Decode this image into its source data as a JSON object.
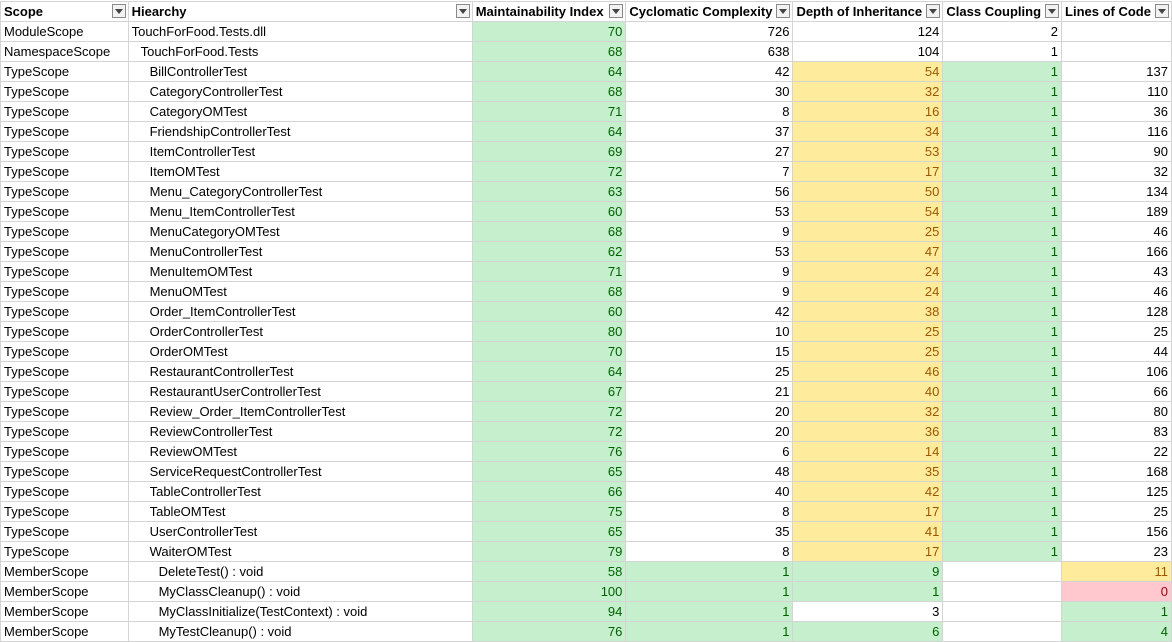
{
  "colors": {
    "good": "#c6efce",
    "good_text": "#006100",
    "warn": "#ffeb9c",
    "warn_text": "#9c5700",
    "bad": "#ffc7ce",
    "bad_text": "#9c0006"
  },
  "columns": [
    "Scope",
    "Hiearchy",
    "Maintainability Index",
    "Cyclomatic Complexity",
    "Depth of Inheritance",
    "Class Coupling",
    "Lines of Code"
  ],
  "rows": [
    {
      "scope": "ModuleScope",
      "name": "TouchForFood.Tests.dll",
      "indent": 0,
      "mi": "70",
      "cc": "726",
      "di": "124",
      "coupling": "2",
      "loc": "",
      "c": [
        "green",
        "plain",
        "plain",
        "plain",
        "plain"
      ]
    },
    {
      "scope": "NamespaceScope",
      "name": "TouchForFood.Tests",
      "indent": 1,
      "mi": "68",
      "cc": "638",
      "di": "104",
      "coupling": "1",
      "loc": "",
      "c": [
        "green",
        "plain",
        "plain",
        "plain",
        "plain"
      ]
    },
    {
      "scope": "TypeScope",
      "name": "BillControllerTest",
      "indent": 2,
      "mi": "64",
      "cc": "42",
      "di": "54",
      "coupling": "1",
      "loc": "137",
      "c": [
        "green",
        "plain",
        "yellow",
        "green",
        "plain"
      ]
    },
    {
      "scope": "TypeScope",
      "name": "CategoryControllerTest",
      "indent": 2,
      "mi": "68",
      "cc": "30",
      "di": "32",
      "coupling": "1",
      "loc": "110",
      "c": [
        "green",
        "plain",
        "yellow",
        "green",
        "plain"
      ]
    },
    {
      "scope": "TypeScope",
      "name": "CategoryOMTest",
      "indent": 2,
      "mi": "71",
      "cc": "8",
      "di": "16",
      "coupling": "1",
      "loc": "36",
      "c": [
        "green",
        "plain",
        "yellow",
        "green",
        "plain"
      ]
    },
    {
      "scope": "TypeScope",
      "name": "FriendshipControllerTest",
      "indent": 2,
      "mi": "64",
      "cc": "37",
      "di": "34",
      "coupling": "1",
      "loc": "116",
      "c": [
        "green",
        "plain",
        "yellow",
        "green",
        "plain"
      ]
    },
    {
      "scope": "TypeScope",
      "name": "ItemControllerTest",
      "indent": 2,
      "mi": "69",
      "cc": "27",
      "di": "53",
      "coupling": "1",
      "loc": "90",
      "c": [
        "green",
        "plain",
        "yellow",
        "green",
        "plain"
      ]
    },
    {
      "scope": "TypeScope",
      "name": "ItemOMTest",
      "indent": 2,
      "mi": "72",
      "cc": "7",
      "di": "17",
      "coupling": "1",
      "loc": "32",
      "c": [
        "green",
        "plain",
        "yellow",
        "green",
        "plain"
      ]
    },
    {
      "scope": "TypeScope",
      "name": "Menu_CategoryControllerTest",
      "indent": 2,
      "mi": "63",
      "cc": "56",
      "di": "50",
      "coupling": "1",
      "loc": "134",
      "c": [
        "green",
        "plain",
        "yellow",
        "green",
        "plain"
      ]
    },
    {
      "scope": "TypeScope",
      "name": "Menu_ItemControllerTest",
      "indent": 2,
      "mi": "60",
      "cc": "53",
      "di": "54",
      "coupling": "1",
      "loc": "189",
      "c": [
        "green",
        "plain",
        "yellow",
        "green",
        "plain"
      ]
    },
    {
      "scope": "TypeScope",
      "name": "MenuCategoryOMTest",
      "indent": 2,
      "mi": "68",
      "cc": "9",
      "di": "25",
      "coupling": "1",
      "loc": "46",
      "c": [
        "green",
        "plain",
        "yellow",
        "green",
        "plain"
      ]
    },
    {
      "scope": "TypeScope",
      "name": "MenuControllerTest",
      "indent": 2,
      "mi": "62",
      "cc": "53",
      "di": "47",
      "coupling": "1",
      "loc": "166",
      "c": [
        "green",
        "plain",
        "yellow",
        "green",
        "plain"
      ]
    },
    {
      "scope": "TypeScope",
      "name": "MenuItemOMTest",
      "indent": 2,
      "mi": "71",
      "cc": "9",
      "di": "24",
      "coupling": "1",
      "loc": "43",
      "c": [
        "green",
        "plain",
        "yellow",
        "green",
        "plain"
      ]
    },
    {
      "scope": "TypeScope",
      "name": "MenuOMTest",
      "indent": 2,
      "mi": "68",
      "cc": "9",
      "di": "24",
      "coupling": "1",
      "loc": "46",
      "c": [
        "green",
        "plain",
        "yellow",
        "green",
        "plain"
      ]
    },
    {
      "scope": "TypeScope",
      "name": "Order_ItemControllerTest",
      "indent": 2,
      "mi": "60",
      "cc": "42",
      "di": "38",
      "coupling": "1",
      "loc": "128",
      "c": [
        "green",
        "plain",
        "yellow",
        "green",
        "plain"
      ]
    },
    {
      "scope": "TypeScope",
      "name": "OrderControllerTest",
      "indent": 2,
      "mi": "80",
      "cc": "10",
      "di": "25",
      "coupling": "1",
      "loc": "25",
      "c": [
        "green",
        "plain",
        "yellow",
        "green",
        "plain"
      ]
    },
    {
      "scope": "TypeScope",
      "name": "OrderOMTest",
      "indent": 2,
      "mi": "70",
      "cc": "15",
      "di": "25",
      "coupling": "1",
      "loc": "44",
      "c": [
        "green",
        "plain",
        "yellow",
        "green",
        "plain"
      ]
    },
    {
      "scope": "TypeScope",
      "name": "RestaurantControllerTest",
      "indent": 2,
      "mi": "64",
      "cc": "25",
      "di": "46",
      "coupling": "1",
      "loc": "106",
      "c": [
        "green",
        "plain",
        "yellow",
        "green",
        "plain"
      ]
    },
    {
      "scope": "TypeScope",
      "name": "RestaurantUserControllerTest",
      "indent": 2,
      "mi": "67",
      "cc": "21",
      "di": "40",
      "coupling": "1",
      "loc": "66",
      "c": [
        "green",
        "plain",
        "yellow",
        "green",
        "plain"
      ]
    },
    {
      "scope": "TypeScope",
      "name": "Review_Order_ItemControllerTest",
      "indent": 2,
      "mi": "72",
      "cc": "20",
      "di": "32",
      "coupling": "1",
      "loc": "80",
      "c": [
        "green",
        "plain",
        "yellow",
        "green",
        "plain"
      ]
    },
    {
      "scope": "TypeScope",
      "name": "ReviewControllerTest",
      "indent": 2,
      "mi": "72",
      "cc": "20",
      "di": "36",
      "coupling": "1",
      "loc": "83",
      "c": [
        "green",
        "plain",
        "yellow",
        "green",
        "plain"
      ]
    },
    {
      "scope": "TypeScope",
      "name": "ReviewOMTest",
      "indent": 2,
      "mi": "76",
      "cc": "6",
      "di": "14",
      "coupling": "1",
      "loc": "22",
      "c": [
        "green",
        "plain",
        "yellow",
        "green",
        "plain"
      ]
    },
    {
      "scope": "TypeScope",
      "name": "ServiceRequestControllerTest",
      "indent": 2,
      "mi": "65",
      "cc": "48",
      "di": "35",
      "coupling": "1",
      "loc": "168",
      "c": [
        "green",
        "plain",
        "yellow",
        "green",
        "plain"
      ]
    },
    {
      "scope": "TypeScope",
      "name": "TableControllerTest",
      "indent": 2,
      "mi": "66",
      "cc": "40",
      "di": "42",
      "coupling": "1",
      "loc": "125",
      "c": [
        "green",
        "plain",
        "yellow",
        "green",
        "plain"
      ]
    },
    {
      "scope": "TypeScope",
      "name": "TableOMTest",
      "indent": 2,
      "mi": "75",
      "cc": "8",
      "di": "17",
      "coupling": "1",
      "loc": "25",
      "c": [
        "green",
        "plain",
        "yellow",
        "green",
        "plain"
      ]
    },
    {
      "scope": "TypeScope",
      "name": "UserControllerTest",
      "indent": 2,
      "mi": "65",
      "cc": "35",
      "di": "41",
      "coupling": "1",
      "loc": "156",
      "c": [
        "green",
        "plain",
        "yellow",
        "green",
        "plain"
      ]
    },
    {
      "scope": "TypeScope",
      "name": "WaiterOMTest",
      "indent": 2,
      "mi": "79",
      "cc": "8",
      "di": "17",
      "coupling": "1",
      "loc": "23",
      "c": [
        "green",
        "plain",
        "yellow",
        "green",
        "plain"
      ]
    },
    {
      "scope": "MemberScope",
      "name": "DeleteTest() : void",
      "indent": 3,
      "mi": "58",
      "cc": "1",
      "di": "9",
      "coupling": "",
      "loc": "11",
      "c": [
        "green",
        "green",
        "green",
        "plain",
        "yellow"
      ]
    },
    {
      "scope": "MemberScope",
      "name": "MyClassCleanup() : void",
      "indent": 3,
      "mi": "100",
      "cc": "1",
      "di": "1",
      "coupling": "",
      "loc": "0",
      "c": [
        "green",
        "green",
        "green",
        "plain",
        "red"
      ]
    },
    {
      "scope": "MemberScope",
      "name": "MyClassInitialize(TestContext) : void",
      "indent": 3,
      "mi": "94",
      "cc": "1",
      "di": "3",
      "coupling": "",
      "loc": "1",
      "c": [
        "green",
        "green",
        "plain",
        "plain",
        "green"
      ]
    },
    {
      "scope": "MemberScope",
      "name": "MyTestCleanup() : void",
      "indent": 3,
      "mi": "76",
      "cc": "1",
      "di": "6",
      "coupling": "",
      "loc": "4",
      "c": [
        "green",
        "green",
        "green",
        "plain",
        "green"
      ]
    }
  ]
}
